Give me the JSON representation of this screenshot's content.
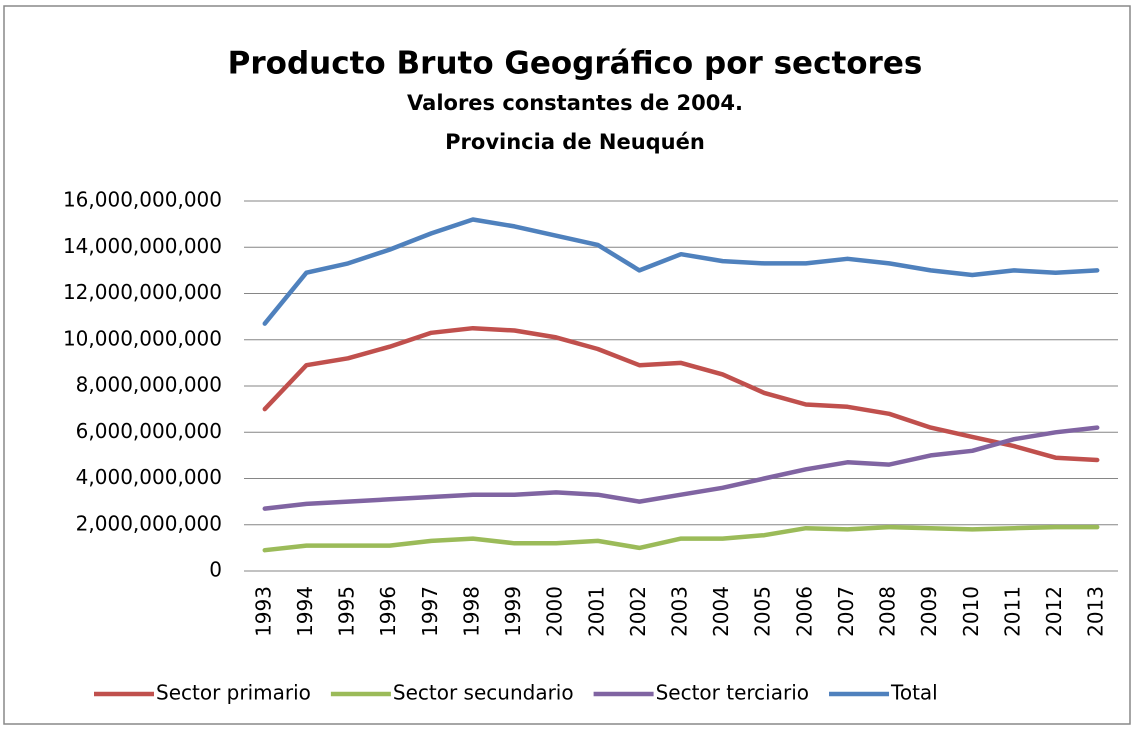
{
  "chart_data": {
    "type": "line",
    "title": "Producto Bruto Geográfico por sectores",
    "subtitle": [
      "Valores constantes de 2004.",
      "Provincia de Neuquén"
    ],
    "categories": [
      "1993",
      "1994",
      "1995",
      "1996",
      "1997",
      "1998",
      "1999",
      "2000",
      "2001",
      "2002",
      "2003",
      "2004",
      "2005",
      "2006",
      "2007",
      "2008",
      "2009",
      "2010",
      "2011",
      "2012",
      "2013"
    ],
    "series": [
      {
        "name": "Sector primario",
        "color": "#c0504d",
        "values": [
          7000000000,
          8900000000,
          9200000000,
          9700000000,
          10300000000,
          10500000000,
          10400000000,
          10100000000,
          9600000000,
          8900000000,
          9000000000,
          8500000000,
          7700000000,
          7200000000,
          7100000000,
          6800000000,
          6200000000,
          5800000000,
          5400000000,
          4900000000,
          4800000000
        ]
      },
      {
        "name": "Sector secundario",
        "color": "#9bbb59",
        "values": [
          900000000,
          1100000000,
          1100000000,
          1100000000,
          1300000000,
          1400000000,
          1200000000,
          1200000000,
          1300000000,
          1000000000,
          1400000000,
          1400000000,
          1550000000,
          1850000000,
          1800000000,
          1900000000,
          1850000000,
          1800000000,
          1850000000,
          1900000000,
          1900000000
        ]
      },
      {
        "name": "Sector terciario",
        "color": "#8064a2",
        "values": [
          2700000000,
          2900000000,
          3000000000,
          3100000000,
          3200000000,
          3300000000,
          3300000000,
          3400000000,
          3300000000,
          3000000000,
          3300000000,
          3600000000,
          4000000000,
          4400000000,
          4700000000,
          4600000000,
          5000000000,
          5200000000,
          5700000000,
          6000000000,
          6200000000
        ]
      },
      {
        "name": "Total",
        "color": "#4f81bd",
        "values": [
          10700000000,
          12900000000,
          13300000000,
          13900000000,
          14600000000,
          15200000000,
          14900000000,
          14500000000,
          14100000000,
          13000000000,
          13700000000,
          13400000000,
          13300000000,
          13300000000,
          13500000000,
          13300000000,
          13000000000,
          12800000000,
          13000000000,
          12900000000,
          13000000000
        ]
      }
    ],
    "ylim": [
      0,
      16000000000
    ],
    "yticks": [
      0,
      {
        "value": 2000000000,
        "label": "2,000,000,000"
      },
      {
        "value": 4000000000,
        "label": "4,000,000,000"
      },
      {
        "value": 6000000000,
        "label": "6,000,000,000"
      },
      {
        "value": 8000000000,
        "label": "8,000,000,000"
      },
      {
        "value": 10000000000,
        "label": "10,000,000,000"
      },
      {
        "value": 12000000000,
        "label": "12,000,000,000"
      },
      {
        "value": 14000000000,
        "label": "14,000,000,000"
      },
      {
        "value": 16000000000,
        "label": "16,000,000,000"
      }
    ],
    "grid": true,
    "legend": "bottom"
  }
}
